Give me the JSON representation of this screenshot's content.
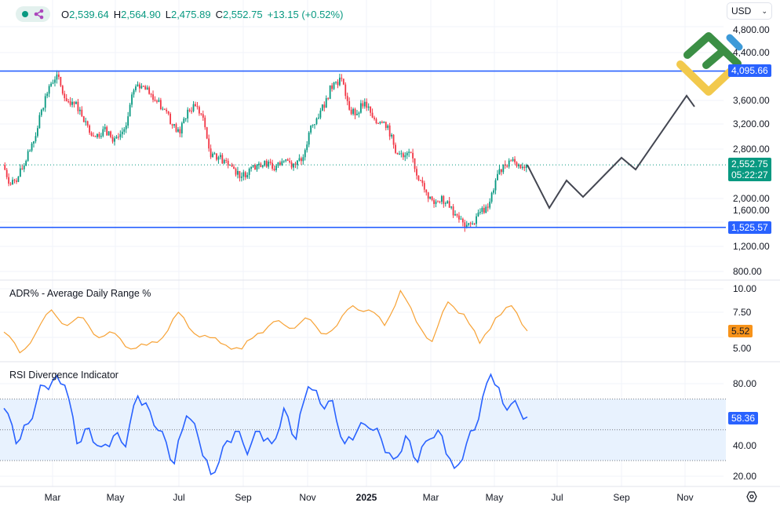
{
  "header": {
    "status_icon": "green-dot-icon",
    "share_icon": "share-icon",
    "ohlc": [
      {
        "key": "O",
        "value": "2,539.64"
      },
      {
        "key": "H",
        "value": "2,564.90"
      },
      {
        "key": "L",
        "value": "2,475.89"
      },
      {
        "key": "C",
        "value": "2,552.75"
      }
    ],
    "change": "+13.15 (+0.52%)",
    "currency": "USD"
  },
  "colors": {
    "up": "#089981",
    "down": "#f23645",
    "level_line": "#2962ff",
    "adr": "#f7a235",
    "rsi": "#2962ff",
    "projection": "#434651"
  },
  "price_axis": {
    "ticks": [
      "4,800.00",
      "4,400.00",
      "3,600.00",
      "3,200.00",
      "2,800.00",
      "2,000.00",
      "1,600.00",
      "1,200.00",
      "800.00"
    ],
    "scale": "linear"
  },
  "levels": [
    {
      "label": "4,095.66",
      "value": 4095.66
    },
    {
      "label": "1,525.57",
      "value": 1525.57
    }
  ],
  "last_price": {
    "value": "2,552.75",
    "countdown": "05:22:27"
  },
  "time_axis": [
    "Mar",
    "May",
    "Jul",
    "Sep",
    "Nov",
    "2025",
    "Mar",
    "May",
    "Jul",
    "Sep",
    "Nov"
  ],
  "adr": {
    "title": "ADR% - Average Daily Range %",
    "ticks": [
      "10.00",
      "7.50",
      "5.00"
    ],
    "last": "5.52"
  },
  "rsi": {
    "title": "RSI Divergence Indicator",
    "ticks": [
      "80.00",
      "40.00",
      "20.00"
    ],
    "last": "58.36",
    "band": [
      30,
      70
    ],
    "mid": 50
  },
  "logo": "litefinance-logo",
  "settings_icon": "settings-icon",
  "chart_data": {
    "type": "candlestick",
    "closes": [
      2555,
      2230,
      2360,
      2620,
      2940,
      3460,
      3850,
      4040,
      3650,
      3590,
      3460,
      3200,
      3010,
      3140,
      3010,
      3010,
      3200,
      3780,
      3850,
      3720,
      3590,
      3460,
      3200,
      3070,
      3460,
      3520,
      3330,
      2680,
      2680,
      2620,
      2490,
      2360,
      2490,
      2550,
      2620,
      2490,
      2550,
      2620,
      2550,
      2680,
      3200,
      3330,
      3650,
      3910,
      3970,
      3460,
      3390,
      3590,
      3330,
      3260,
      3200,
      2750,
      2680,
      2750,
      2300,
      2100,
      1910,
      2040,
      1850,
      1720,
      1520,
      1590,
      1780,
      1850,
      2300,
      2560,
      2620,
      2560,
      2552.75
    ],
    "projection": [
      2552.75,
      1845,
      2297,
      2026,
      2671,
      2477,
      3690,
      3510
    ],
    "adr_values": [
      5.4,
      3.2,
      5.25,
      7.75,
      6.1,
      6.9,
      4.8,
      5.25,
      3.6,
      4.0,
      4.8,
      7.5,
      5.25,
      4.8,
      4.0,
      3.6,
      5.25,
      6.5,
      5.8,
      6.9,
      5.25,
      6.1,
      8.2,
      7.75,
      6.1,
      9.8,
      6.5,
      4.4,
      8.6,
      7.3,
      4.2,
      6.9,
      8.2,
      5.52
    ],
    "rsi_values": [
      64,
      41,
      54,
      79,
      82,
      79,
      41,
      51,
      39,
      46,
      39,
      72,
      62,
      49,
      28,
      59,
      44,
      21,
      39,
      49,
      34,
      49,
      41,
      64,
      44,
      78,
      67,
      69,
      41,
      49,
      51,
      44,
      31,
      46,
      29,
      44,
      46,
      25,
      41,
      57,
      86,
      67,
      69,
      58.36
    ]
  }
}
